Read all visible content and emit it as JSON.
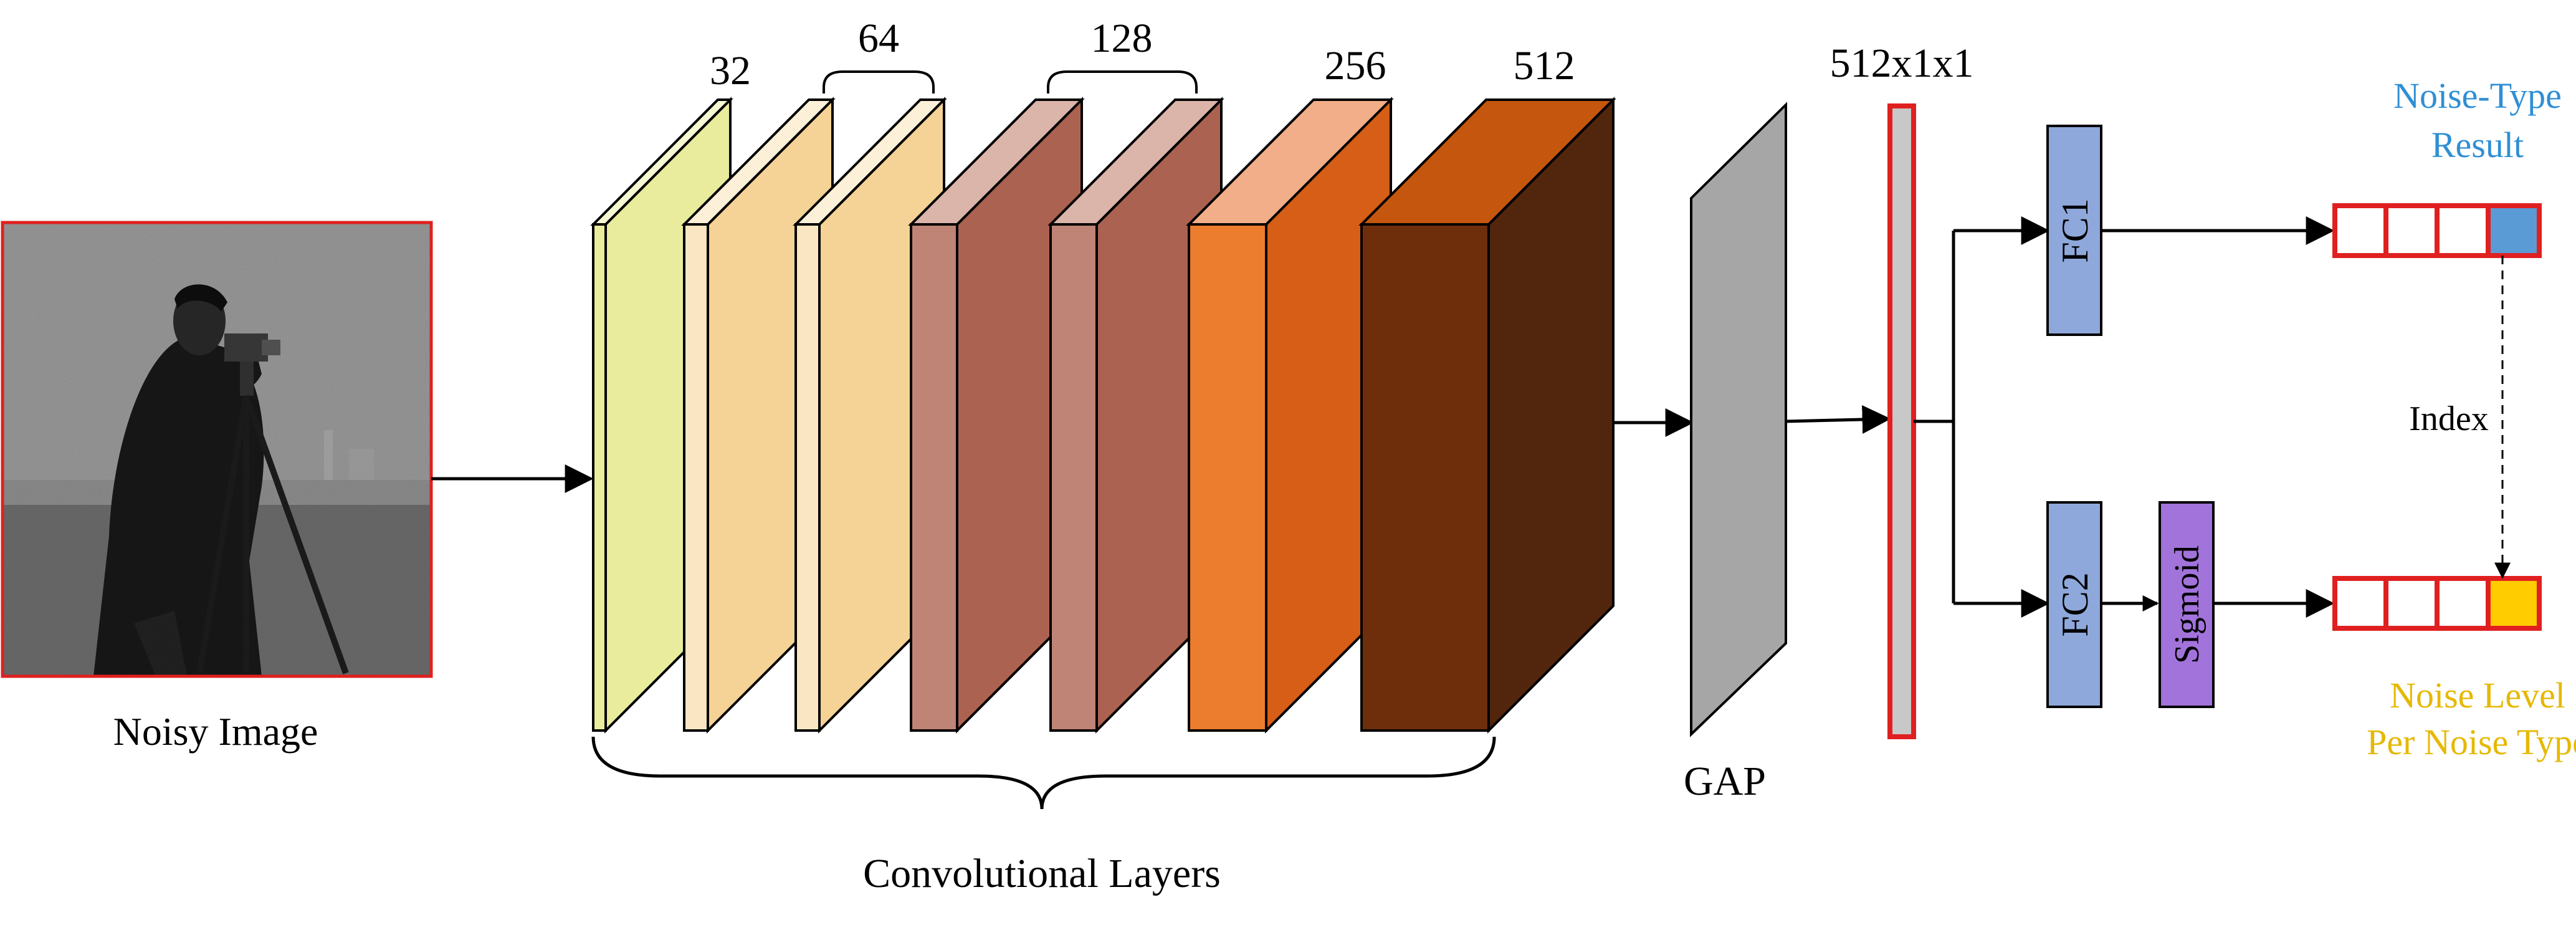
{
  "input": {
    "caption": "Noisy Image",
    "frame_color": "#e02020"
  },
  "conv": {
    "caption": "Convolutional Layers",
    "labels": {
      "c32": "32",
      "c64": "64",
      "c128": "128",
      "c256": "256",
      "c512": "512"
    },
    "blocks": [
      {
        "front": "#e8ec9c",
        "side": "#e8ec9c",
        "top": "#f6f8d2"
      },
      {
        "front": "#fbe6c4",
        "side": "#f5d296",
        "top": "#fdf0d8"
      },
      {
        "front": "#fbe6c4",
        "side": "#f5d296",
        "top": "#fdf0d8"
      },
      {
        "front": "#bf8476",
        "side": "#ab6250",
        "top": "#dbb4aa"
      },
      {
        "front": "#bf8476",
        "side": "#ab6250",
        "top": "#dbb4aa"
      },
      {
        "front": "#ec7c2e",
        "side": "#d65e16",
        "top": "#f2ae88"
      },
      {
        "front": "#6e2e0c",
        "side": "#52260c",
        "top": "#c4560e"
      }
    ]
  },
  "gap": {
    "caption": "GAP",
    "color": "#a6a6a6"
  },
  "vector": {
    "label": "512x1x1",
    "fill": "#c8c8c8",
    "border": "#e02020"
  },
  "fc1": {
    "label": "FC1",
    "color": "#8fa8db"
  },
  "fc2": {
    "label": "FC2",
    "color": "#8fa8db"
  },
  "sigmoid": {
    "label": "Sigmoid",
    "color": "#a273db"
  },
  "noise_type": {
    "caption_line1": "Noise-Type",
    "caption_line2": "Result",
    "caption_color": "#2f8fd4",
    "highlight": "#5b9bd5"
  },
  "noise_level": {
    "caption_line1": "Noise Level",
    "caption_line2": "Per Noise Type",
    "caption_color": "#e6b800",
    "highlight": "#ffcc00"
  },
  "index_label": "Index"
}
